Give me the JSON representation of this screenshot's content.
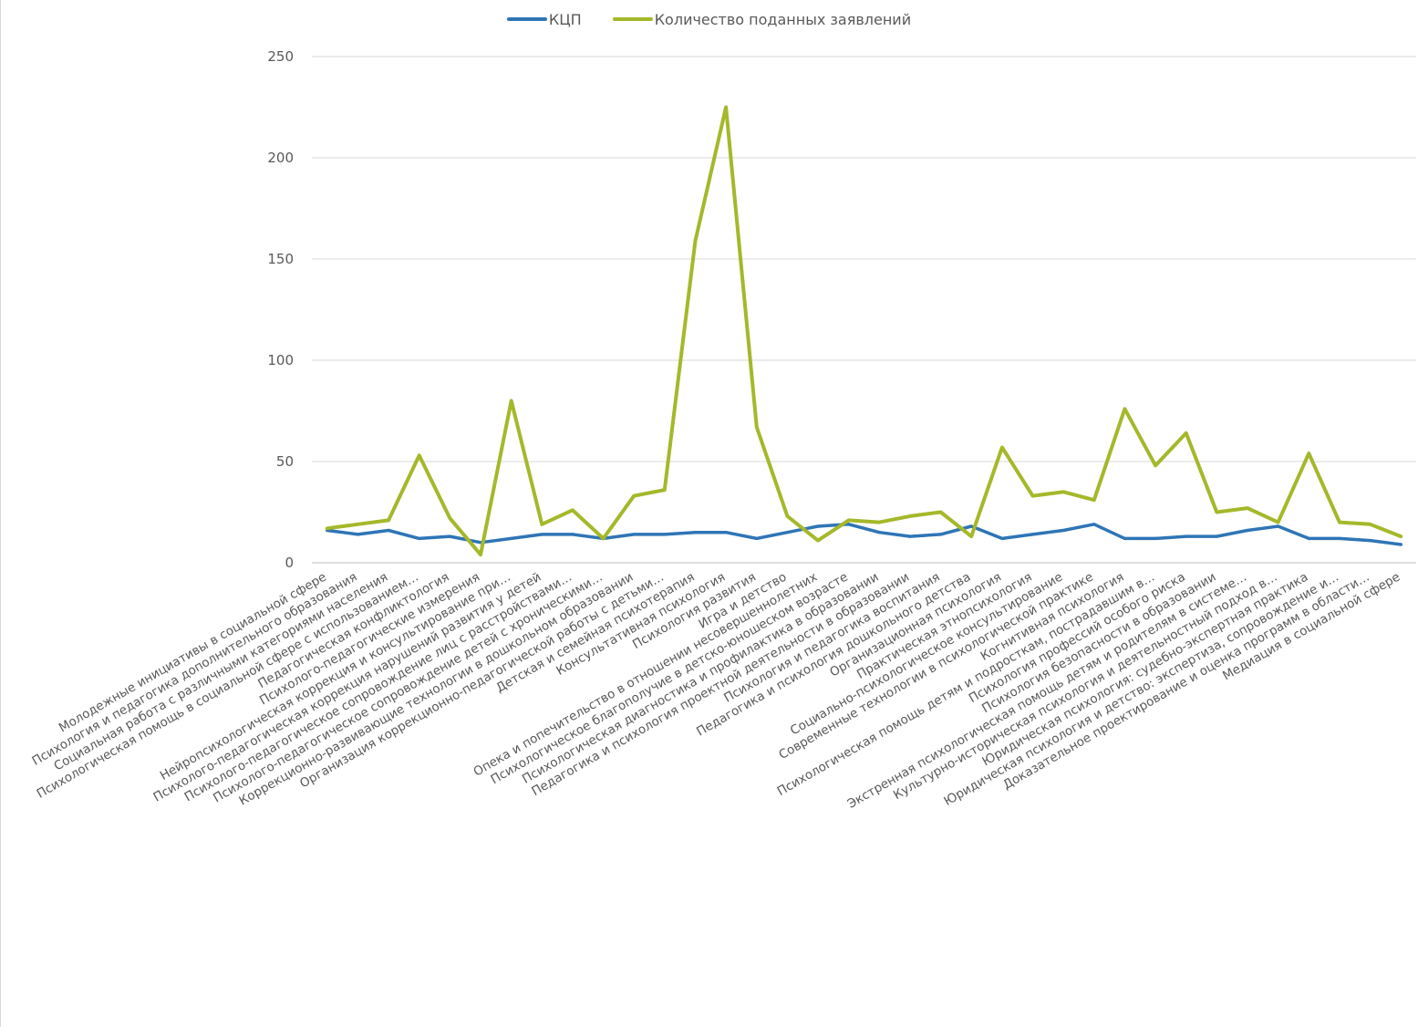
{
  "chart_data": {
    "type": "line",
    "legend_position": "top",
    "grid": true,
    "ylim": [
      0,
      250
    ],
    "yticks": [
      "0",
      "50",
      "100",
      "150",
      "200",
      "250"
    ],
    "categories": [
      "Молодежные инициативы в социальной сфере",
      "Психология и педагогика дополнительного образования",
      "Социальная работа с различными категориями населения",
      "Психологическая помощь в социальной сфере с использованием…",
      "Педагогическая конфликтология",
      "Психолого-педагогические измерения",
      "Нейропсихологическая коррекция и консультирование при…",
      "Психолого-педагогическая коррекция нарушений развития у детей",
      "Психолого-педагогическое сопровождение лиц с расстройствами…",
      "Психолого-педагогическое сопровождение детей с хроническими…",
      "Коррекционно-развивающие технологии в дошкольном образовании",
      "Организация коррекционно-педагогической работы с детьми…",
      "Детская и семейная психотерапия",
      "Консультативная психология",
      "Психология развития",
      "Игра и детство",
      "Опека и попечительство в отношении несовершеннолетних",
      "Психологическое благополучие в детско-юношеском возрасте",
      "Психологическая диагностика и профилактика в образовании",
      "Педагогика и психология проектной деятельности в образовании",
      "Психология и педагогика воспитания",
      "Педагогика и психология дошкольного детства",
      "Организационная психология",
      "Практическая этнопсихология",
      "Социально-психологическое консультирование",
      "Современные технологии в психологической практике",
      "Когнитивная психология",
      "Психологическая помощь детям и подросткам, пострадавшим в…",
      "Психология профессий особого риска",
      "Психология безопасности в образовании",
      "Экстренная психологическая помощь детям и родителям в системе…",
      "Культурно-историческая психология и деятельностный подход в…",
      "Юридическая психология: судебно-экспертная практика",
      "Юридическая психология и детство: экспертиза, сопровождение и…",
      "Доказательное проектирование и оценка программ в области…",
      "Медиация в социальной сфере"
    ],
    "series": [
      {
        "name": "КЦП",
        "color": "#2e75b6",
        "values": [
          16,
          14,
          16,
          12,
          13,
          10,
          12,
          14,
          14,
          12,
          14,
          14,
          15,
          15,
          12,
          15,
          18,
          19,
          15,
          13,
          14,
          18,
          12,
          14,
          16,
          19,
          12,
          12,
          13,
          13,
          16,
          18,
          12,
          12,
          11,
          9
        ]
      },
      {
        "name": "Количество поданных заявлений",
        "color": "#a5b82a",
        "values": [
          17,
          19,
          21,
          53,
          22,
          4,
          80,
          19,
          26,
          12,
          33,
          36,
          159,
          225,
          67,
          23,
          11,
          21,
          20,
          23,
          25,
          13,
          57,
          33,
          35,
          31,
          76,
          48,
          64,
          25,
          27,
          20,
          54,
          20,
          19,
          13
        ]
      }
    ]
  }
}
